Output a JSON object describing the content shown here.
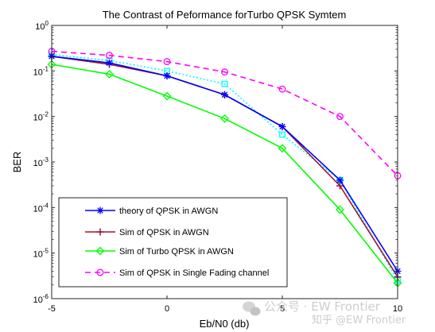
{
  "chart_data": {
    "type": "line",
    "title": "The Contrast of Peformance forTurbo QPSK Symtem",
    "xlabel": "Eb/N0  (db)",
    "ylabel": "BER",
    "xlim": [
      -5,
      10
    ],
    "ylim": [
      1e-06,
      1
    ],
    "y_scale": "log",
    "x_ticks": [
      -5,
      0,
      5,
      10
    ],
    "x_tick_labels": [
      "-5",
      "0",
      "5",
      "10"
    ],
    "y_ticks": [
      {
        "value": 1,
        "base": "10",
        "exp": "0"
      },
      {
        "value": 0.1,
        "base": "10",
        "exp": "-1"
      },
      {
        "value": 0.01,
        "base": "10",
        "exp": "-2"
      },
      {
        "value": 0.001,
        "base": "10",
        "exp": "-3"
      },
      {
        "value": 0.0001,
        "base": "10",
        "exp": "-4"
      },
      {
        "value": 1e-05,
        "base": "10",
        "exp": "-5"
      },
      {
        "value": 1e-06,
        "base": "10",
        "exp": "-6"
      }
    ],
    "grid": false,
    "legend_position": "bottom-left",
    "legend_labels": [
      "theory of QPSK in AWGN",
      "Sim of QPSK in AWGN",
      "Sim of Turbo QPSK in AWGN",
      "Sim of QPSK in Single Fading channel"
    ],
    "series": [
      {
        "name": "theory of QPSK in AWGN",
        "color": "#0000ff",
        "line": "solid",
        "marker": "asterisk",
        "x": [
          -5,
          -2.5,
          0,
          2.5,
          5,
          7.5,
          10
        ],
        "y": [
          0.21,
          0.15,
          0.078,
          0.03,
          0.006,
          0.0004,
          4e-06
        ]
      },
      {
        "name": "Sim of QPSK in AWGN",
        "color": "#a2142f",
        "line": "solid",
        "marker": "plus",
        "x": [
          -5,
          -2.5,
          0,
          2.5,
          5,
          7.5,
          10
        ],
        "y": [
          0.21,
          0.14,
          0.078,
          0.03,
          0.006,
          0.0003,
          3e-06
        ]
      },
      {
        "name": "Sim of Turbo QPSK in AWGN",
        "color": "#00ff00",
        "line": "solid",
        "marker": "diamond",
        "x": [
          -5,
          -2.5,
          0,
          2.5,
          5,
          7.5,
          10
        ],
        "y": [
          0.14,
          0.085,
          0.028,
          0.009,
          0.002,
          9e-05,
          2.2e-06
        ]
      },
      {
        "name": "Sim of QPSK in Single Fading channel",
        "color": "#ff00ff",
        "line": "dashed",
        "marker": "circle",
        "x": [
          -5,
          -2.5,
          0,
          2.5,
          5,
          7.5,
          10
        ],
        "y": [
          0.27,
          0.22,
          0.16,
          0.095,
          0.04,
          0.01,
          0.0005
        ]
      },
      {
        "name": "",
        "color": "#00ffff",
        "line": "dotted",
        "marker": "square",
        "x": [
          -5,
          -2.5,
          0,
          2.5,
          5,
          7.5,
          10
        ],
        "y": [
          0.23,
          0.17,
          0.1,
          0.052,
          0.004,
          0.0004,
          2.5e-06
        ]
      }
    ]
  },
  "watermark": {
    "account_text": "公众号 · EW Frontier",
    "site_text": "知乎 @EW Frontier"
  }
}
